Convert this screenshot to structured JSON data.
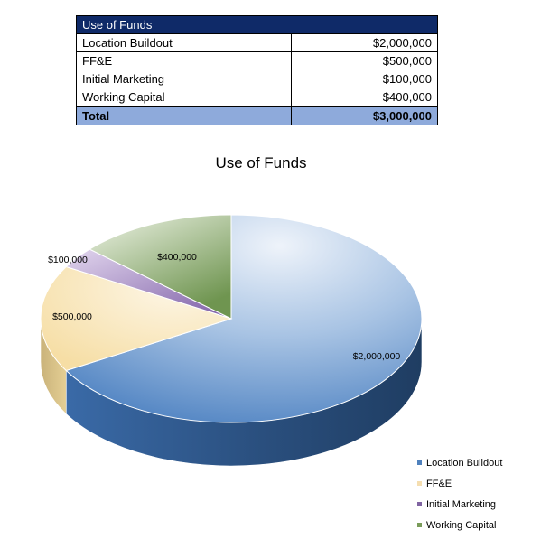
{
  "table": {
    "header": "Use of Funds",
    "rows": [
      {
        "label": "Location Buildout",
        "value": "$2,000,000"
      },
      {
        "label": "FF&E",
        "value": "$500,000"
      },
      {
        "label": "Initial Marketing",
        "value": "$100,000"
      },
      {
        "label": "Working Capital",
        "value": "$400,000"
      }
    ],
    "total": {
      "label": "Total",
      "value": "$3,000,000"
    }
  },
  "chart_data": {
    "type": "pie",
    "title": "Use of Funds",
    "categories": [
      "Location Buildout",
      "FF&E",
      "Initial Marketing",
      "Working Capital"
    ],
    "values": [
      2000000,
      500000,
      100000,
      400000
    ],
    "data_labels": [
      "$2,000,000",
      "$500,000",
      "$100,000",
      "$400,000"
    ],
    "colors": [
      "#4f81bd",
      "#f5deb0",
      "#8064a2",
      "#7a9c5a"
    ],
    "legend_position": "bottom-right",
    "three_d": true
  }
}
